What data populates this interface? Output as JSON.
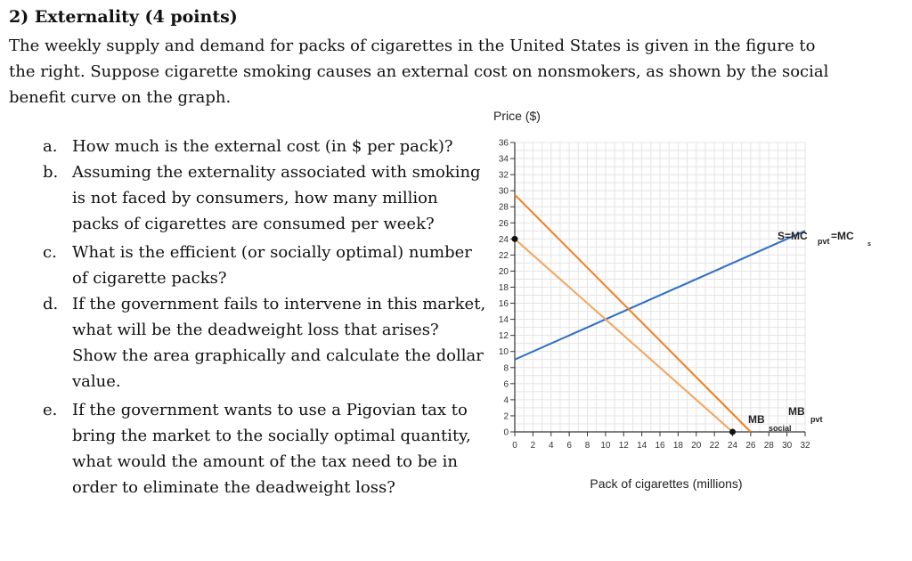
{
  "problem": {
    "heading": "2) Externality (4 points)",
    "intro": "The weekly supply and demand for packs of cigarettes in the United States is given in the figure to the right. Suppose cigarette smoking causes an external cost on nonsmokers, as shown by the social benefit curve on the graph.",
    "questions": [
      {
        "letter": "a.",
        "text": "How much is the external cost (in $ per pack)?"
      },
      {
        "letter": "b.",
        "text": "Assuming the externality associated with smoking is not faced by consumers, how many million packs of cigarettes are consumed per week?"
      },
      {
        "letter": "c.",
        "text": "What is the efficient (or socially optimal) number of cigarette packs?"
      },
      {
        "letter": "d.",
        "text": "If the government fails to intervene in this market, what will be the deadweight loss that arises? Show the area graphically and calculate the dollar value."
      },
      {
        "letter": "e.",
        "text": "If the government wants to use a Pigovian tax to bring the market to the socially optimal quantity, what would the amount of the tax need to be in order to eliminate the deadweight loss?"
      }
    ]
  },
  "chart_data": {
    "type": "line",
    "title": "",
    "xlabel": "Pack of cigarettes (millions)",
    "ylabel": "Price ($)",
    "xlim": [
      0,
      32
    ],
    "ylim": [
      0,
      36
    ],
    "x_ticks": [
      0,
      2,
      4,
      6,
      8,
      10,
      12,
      14,
      16,
      18,
      20,
      22,
      24,
      26,
      28,
      30,
      32
    ],
    "y_ticks": [
      0,
      2,
      4,
      6,
      8,
      10,
      12,
      14,
      16,
      18,
      20,
      22,
      24,
      26,
      28,
      30,
      32,
      34,
      36
    ],
    "grid": true,
    "series": [
      {
        "x": [
          0,
          32
        ],
        "y": [
          9,
          25
        ],
        "color": "#2f6fc4",
        "label_main": "S=MC",
        "label_sub1": "pvt",
        "label_mid": "=MC",
        "label_sub2": "s"
      },
      {
        "x": [
          0,
          26
        ],
        "y": [
          29.5,
          0
        ],
        "color": "#f07f1e",
        "label_main": "MB",
        "label_sub": "pvt"
      },
      {
        "x": [
          0,
          24
        ],
        "y": [
          24,
          0
        ],
        "color": "#f3a45c",
        "label_main": "MB",
        "label_sub": "social"
      }
    ],
    "points": [
      {
        "x": 0,
        "y": 24
      },
      {
        "x": 24,
        "y": 0
      }
    ]
  }
}
